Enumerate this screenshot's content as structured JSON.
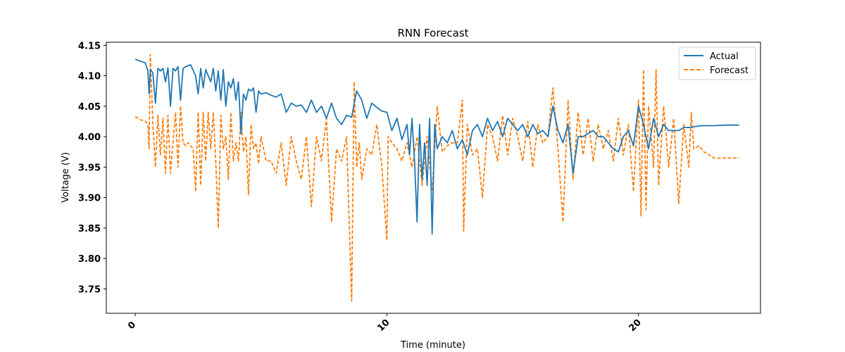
{
  "chart_data": {
    "type": "line",
    "title": "RNN Forecast",
    "xlabel": "Time (minute)",
    "ylabel": "Voltage (V)",
    "xlim": [
      -1.15,
      24.85
    ],
    "ylim": [
      3.71,
      4.155
    ],
    "x_ticks": [
      0,
      10,
      20
    ],
    "x_tick_labels": [
      "0",
      "10",
      "20"
    ],
    "y_ticks": [
      3.75,
      3.8,
      3.85,
      3.9,
      3.95,
      4.0,
      4.05,
      4.1,
      4.15
    ],
    "y_tick_labels": [
      "3.75",
      "3.80",
      "3.85",
      "3.90",
      "3.95",
      "4.00",
      "4.05",
      "4.10",
      "4.15"
    ],
    "grid": false,
    "legend_position": "top-right",
    "colors": {
      "actual": "#1f77b4",
      "forecast": "#ff7f0e"
    },
    "series": [
      {
        "name": "Actual",
        "style": "solid",
        "x": [
          0.0,
          0.2,
          0.4,
          0.5,
          0.55,
          0.6,
          0.7,
          0.8,
          0.9,
          1.0,
          1.1,
          1.2,
          1.3,
          1.4,
          1.5,
          1.6,
          1.7,
          1.8,
          1.9,
          2.0,
          2.2,
          2.4,
          2.5,
          2.6,
          2.7,
          2.8,
          2.9,
          3.0,
          3.1,
          3.2,
          3.3,
          3.4,
          3.5,
          3.6,
          3.7,
          3.8,
          3.9,
          4.0,
          4.1,
          4.2,
          4.3,
          4.4,
          4.5,
          4.6,
          4.7,
          4.8,
          4.9,
          5.0,
          5.2,
          5.4,
          5.6,
          5.8,
          6.0,
          6.2,
          6.4,
          6.6,
          6.8,
          7.0,
          7.2,
          7.4,
          7.6,
          7.8,
          8.0,
          8.2,
          8.4,
          8.6,
          8.8,
          9.0,
          9.2,
          9.4,
          9.6,
          9.8,
          10.0,
          10.2,
          10.4,
          10.6,
          10.8,
          10.9,
          11.0,
          11.1,
          11.2,
          11.3,
          11.4,
          11.5,
          11.6,
          11.7,
          11.8,
          11.9,
          12.0,
          12.2,
          12.4,
          12.6,
          12.8,
          13.0,
          13.2,
          13.4,
          13.6,
          13.8,
          14.0,
          14.2,
          14.4,
          14.6,
          14.8,
          15.0,
          15.2,
          15.4,
          15.6,
          15.8,
          16.0,
          16.2,
          16.4,
          16.6,
          16.8,
          17.0,
          17.2,
          17.4,
          17.6,
          17.8,
          18.0,
          18.2,
          18.4,
          18.6,
          18.8,
          19.0,
          19.2,
          19.4,
          19.6,
          19.8,
          20.0,
          20.2,
          20.4,
          20.6,
          20.8,
          21.0,
          21.2,
          21.4,
          21.6,
          21.8,
          22.0,
          22.5,
          23.0,
          23.5,
          24.0
        ],
        "values": [
          4.127,
          4.124,
          4.121,
          4.108,
          4.07,
          4.11,
          4.105,
          4.055,
          4.112,
          4.108,
          4.112,
          4.09,
          4.113,
          4.05,
          4.112,
          4.108,
          4.115,
          4.06,
          4.112,
          4.115,
          4.118,
          4.1,
          4.07,
          4.112,
          4.08,
          4.11,
          4.1,
          4.09,
          4.112,
          4.075,
          4.108,
          4.06,
          4.11,
          4.05,
          4.09,
          4.08,
          4.095,
          4.06,
          4.09,
          4.005,
          4.07,
          4.06,
          4.078,
          4.075,
          4.08,
          4.04,
          4.075,
          4.07,
          4.072,
          4.068,
          4.065,
          4.07,
          4.04,
          4.055,
          4.05,
          4.052,
          4.04,
          4.06,
          4.04,
          4.05,
          4.03,
          4.055,
          4.03,
          4.02,
          4.035,
          4.032,
          4.075,
          4.06,
          4.03,
          4.055,
          4.048,
          4.042,
          4.04,
          4.01,
          4.03,
          3.995,
          4.02,
          3.97,
          4.03,
          3.96,
          3.86,
          4.02,
          3.93,
          3.99,
          3.92,
          4.03,
          3.84,
          4.02,
          3.98,
          4.0,
          3.99,
          4.01,
          3.98,
          3.995,
          3.97,
          4.01,
          4.02,
          4.0,
          4.03,
          4.01,
          4.025,
          4.0,
          4.03,
          4.02,
          4.01,
          4.02,
          4.0,
          4.02,
          4.005,
          4.01,
          4.0,
          4.05,
          4.01,
          3.99,
          4.02,
          3.94,
          4.0,
          4.0,
          4.005,
          4.01,
          4.0,
          4.0,
          3.99,
          3.98,
          3.975,
          4.0,
          4.01,
          3.985,
          4.05,
          4.02,
          3.98,
          4.03,
          4.0,
          4.02,
          4.01,
          4.01,
          4.01,
          4.015,
          4.015,
          4.018,
          4.018,
          4.019,
          4.019
        ]
      },
      {
        "name": "Forecast",
        "style": "dashed",
        "x": [
          0.0,
          0.2,
          0.4,
          0.5,
          0.55,
          0.6,
          0.7,
          0.8,
          0.9,
          1.0,
          1.1,
          1.2,
          1.3,
          1.4,
          1.5,
          1.6,
          1.7,
          1.8,
          1.9,
          2.0,
          2.1,
          2.2,
          2.3,
          2.4,
          2.5,
          2.6,
          2.7,
          2.8,
          2.9,
          3.0,
          3.1,
          3.2,
          3.3,
          3.4,
          3.5,
          3.6,
          3.7,
          3.8,
          3.9,
          4.0,
          4.1,
          4.2,
          4.3,
          4.4,
          4.5,
          4.6,
          4.7,
          4.8,
          4.9,
          5.0,
          5.2,
          5.4,
          5.6,
          5.8,
          6.0,
          6.2,
          6.4,
          6.6,
          6.8,
          7.0,
          7.2,
          7.4,
          7.6,
          7.8,
          8.0,
          8.2,
          8.4,
          8.6,
          8.7,
          8.8,
          8.9,
          9.0,
          9.2,
          9.4,
          9.6,
          9.8,
          10.0,
          10.05,
          10.2,
          10.4,
          10.6,
          10.8,
          11.0,
          11.2,
          11.4,
          11.6,
          11.8,
          12.0,
          12.2,
          12.4,
          12.6,
          12.8,
          13.0,
          13.05,
          13.2,
          13.4,
          13.6,
          13.8,
          14.0,
          14.2,
          14.4,
          14.6,
          14.8,
          15.0,
          15.2,
          15.4,
          15.6,
          15.8,
          16.0,
          16.2,
          16.4,
          16.6,
          16.8,
          17.0,
          17.2,
          17.4,
          17.6,
          17.8,
          18.0,
          18.2,
          18.4,
          18.6,
          18.8,
          19.0,
          19.2,
          19.4,
          19.6,
          19.8,
          20.0,
          20.1,
          20.2,
          20.3,
          20.4,
          20.6,
          20.7,
          20.8,
          21.0,
          21.2,
          21.4,
          21.6,
          21.8,
          22.0,
          22.1,
          22.2,
          22.4,
          22.6,
          23.0,
          23.5,
          24.0
        ],
        "values": [
          4.033,
          4.028,
          4.025,
          4.02,
          3.98,
          4.135,
          4.02,
          3.95,
          4.035,
          3.97,
          4.03,
          3.94,
          4.035,
          3.94,
          3.99,
          4.04,
          3.95,
          4.05,
          3.99,
          3.985,
          3.99,
          3.985,
          3.98,
          3.91,
          4.04,
          3.92,
          4.04,
          3.96,
          4.04,
          3.98,
          4.04,
          3.96,
          3.85,
          4.035,
          3.98,
          4.0,
          3.93,
          4.04,
          3.96,
          3.99,
          3.96,
          4.04,
          3.975,
          4.0,
          3.905,
          4.02,
          3.98,
          3.99,
          3.955,
          4.0,
          3.96,
          3.96,
          3.94,
          3.99,
          3.92,
          4.0,
          3.96,
          3.93,
          4.0,
          3.885,
          4.0,
          3.96,
          4.03,
          3.86,
          3.98,
          3.96,
          4.0,
          3.73,
          4.09,
          3.95,
          3.99,
          3.93,
          3.98,
          3.97,
          4.02,
          3.95,
          3.83,
          4.0,
          3.99,
          3.98,
          3.96,
          3.99,
          3.95,
          4.0,
          3.92,
          4.0,
          3.91,
          4.05,
          3.975,
          3.985,
          3.99,
          3.99,
          4.06,
          3.845,
          4.02,
          3.97,
          3.98,
          3.9,
          4.02,
          4.0,
          3.96,
          4.035,
          3.97,
          4.03,
          4.0,
          3.96,
          4.025,
          3.95,
          4.02,
          3.99,
          4.0,
          4.08,
          3.98,
          3.86,
          4.06,
          3.93,
          4.04,
          3.97,
          4.03,
          3.96,
          4.02,
          3.98,
          4.01,
          3.96,
          4.03,
          3.97,
          4.02,
          3.91,
          4.06,
          3.87,
          4.11,
          3.88,
          4.05,
          3.95,
          4.11,
          3.92,
          4.05,
          3.95,
          4.03,
          3.89,
          4.02,
          3.95,
          4.04,
          3.98,
          3.985,
          3.975,
          3.965,
          3.965,
          3.965
        ]
      }
    ]
  }
}
